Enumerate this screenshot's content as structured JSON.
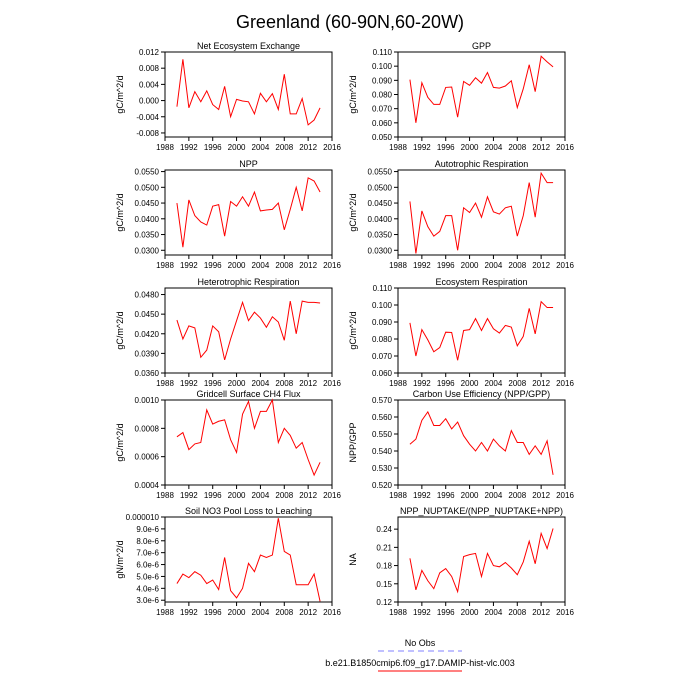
{
  "page_title": "Greenland (60-90N,60-20W)",
  "legend": {
    "entries": [
      {
        "label": "No Obs",
        "color": "#8080ff",
        "dash": true
      },
      {
        "label": "b.e21.B1850cmip6.f09_g17.DAMIP-hist-vlc.003",
        "color": "#ff0000",
        "dash": false
      }
    ]
  },
  "x_years": [
    1990,
    1991,
    1992,
    1993,
    1994,
    1995,
    1996,
    1997,
    1998,
    1999,
    2000,
    2001,
    2002,
    2003,
    2004,
    2005,
    2006,
    2007,
    2008,
    2009,
    2010,
    2011,
    2012,
    2013,
    2014
  ],
  "chart_data": [
    {
      "type": "line",
      "title": "Net Ecosystem Exchange",
      "ylabel": "gC/m^2/d",
      "xlim": [
        1988,
        2016
      ],
      "xticks": [
        1988,
        1992,
        1996,
        2000,
        2004,
        2008,
        2012,
        2016
      ],
      "ylim": [
        -0.009,
        0.012
      ],
      "yticks": [
        "-0.008",
        "-0.004",
        "0.000",
        "0.004",
        "0.008",
        "0.012"
      ],
      "series": [
        {
          "color": "#ff0000",
          "values": [
            -0.0015,
            0.0102,
            -0.0018,
            0.0022,
            -0.0003,
            0.0024,
            -0.001,
            -0.0022,
            0.0035,
            -0.004,
            0.0003,
            -0.0001,
            -0.0003,
            -0.0033,
            0.0018,
            -0.0003,
            0.0017,
            -0.0022,
            0.0065,
            -0.0033,
            -0.0033,
            0.0005,
            -0.006,
            -0.0048,
            -0.0018
          ]
        }
      ]
    },
    {
      "type": "line",
      "title": "GPP",
      "ylabel": "gC/m^2/d",
      "xlim": [
        1988,
        2016
      ],
      "xticks": [
        1988,
        1992,
        1996,
        2000,
        2004,
        2008,
        2012,
        2016
      ],
      "ylim": [
        0.05,
        0.11
      ],
      "yticks": [
        "0.050",
        "0.060",
        "0.070",
        "0.080",
        "0.090",
        "0.100",
        "0.110"
      ],
      "series": [
        {
          "color": "#ff0000",
          "values": [
            0.0905,
            0.06,
            0.0883,
            0.078,
            0.073,
            0.073,
            0.085,
            0.0853,
            0.064,
            0.0892,
            0.0865,
            0.0918,
            0.088,
            0.0955,
            0.085,
            0.0845,
            0.086,
            0.0897,
            0.0708,
            0.084,
            0.101,
            0.082,
            0.107,
            0.103,
            0.0995
          ]
        }
      ]
    },
    {
      "type": "line",
      "title": "NPP",
      "ylabel": "gC/m^2/d",
      "xlim": [
        1988,
        2016
      ],
      "xticks": [
        1988,
        1992,
        1996,
        2000,
        2004,
        2008,
        2012,
        2016
      ],
      "ylim": [
        0.0285,
        0.0555
      ],
      "yticks": [
        "0.0300",
        "0.0350",
        "0.0400",
        "0.0450",
        "0.0500",
        "0.0550"
      ],
      "series": [
        {
          "color": "#ff0000",
          "values": [
            0.045,
            0.031,
            0.046,
            0.041,
            0.039,
            0.038,
            0.044,
            0.0445,
            0.0345,
            0.0455,
            0.044,
            0.047,
            0.044,
            0.0485,
            0.0425,
            0.0428,
            0.043,
            0.045,
            0.0365,
            0.043,
            0.05,
            0.0425,
            0.053,
            0.052,
            0.0485
          ]
        }
      ]
    },
    {
      "type": "line",
      "title": "Autotrophic Respiration",
      "ylabel": "gC/m^2/d",
      "xlim": [
        1988,
        2016
      ],
      "xticks": [
        1988,
        1992,
        1996,
        2000,
        2004,
        2008,
        2012,
        2016
      ],
      "ylim": [
        0.0285,
        0.0555
      ],
      "yticks": [
        "0.0300",
        "0.0350",
        "0.0400",
        "0.0450",
        "0.0500",
        "0.0550"
      ],
      "series": [
        {
          "color": "#ff0000",
          "values": [
            0.0455,
            0.029,
            0.0425,
            0.0375,
            0.0345,
            0.036,
            0.041,
            0.041,
            0.03,
            0.0435,
            0.042,
            0.045,
            0.0405,
            0.047,
            0.0422,
            0.0415,
            0.0435,
            0.044,
            0.0345,
            0.041,
            0.0515,
            0.0405,
            0.0545,
            0.0515,
            0.0515
          ]
        }
      ]
    },
    {
      "type": "line",
      "title": "Heterotrophic Respiration",
      "ylabel": "gC/m^2/d",
      "xlim": [
        1988,
        2016
      ],
      "xticks": [
        1988,
        1992,
        1996,
        2000,
        2004,
        2008,
        2012,
        2016
      ],
      "ylim": [
        0.036,
        0.049
      ],
      "yticks": [
        "0.0360",
        "0.0390",
        "0.0420",
        "0.0450",
        "0.0480"
      ],
      "series": [
        {
          "color": "#ff0000",
          "values": [
            0.0441,
            0.0412,
            0.0432,
            0.0429,
            0.0384,
            0.0395,
            0.0432,
            0.0423,
            0.038,
            0.0412,
            0.044,
            0.0468,
            0.044,
            0.0453,
            0.0444,
            0.043,
            0.0446,
            0.0438,
            0.041,
            0.047,
            0.042,
            0.047,
            0.0468,
            0.0468,
            0.0467
          ]
        }
      ]
    },
    {
      "type": "line",
      "title": "Ecosystem Respiration",
      "ylabel": "gC/m^2/d",
      "xlim": [
        1988,
        2016
      ],
      "xticks": [
        1988,
        1992,
        1996,
        2000,
        2004,
        2008,
        2012,
        2016
      ],
      "ylim": [
        0.06,
        0.11
      ],
      "yticks": [
        "0.060",
        "0.070",
        "0.080",
        "0.090",
        "0.100",
        "0.110"
      ],
      "series": [
        {
          "color": "#ff0000",
          "values": [
            0.0895,
            0.07,
            0.0855,
            0.0795,
            0.0725,
            0.075,
            0.084,
            0.0838,
            0.0675,
            0.085,
            0.0855,
            0.092,
            0.085,
            0.092,
            0.086,
            0.0835,
            0.088,
            0.087,
            0.076,
            0.0815,
            0.098,
            0.083,
            0.102,
            0.0985,
            0.0985
          ]
        }
      ]
    },
    {
      "type": "line",
      "title": "Gridcell Surface CH4 Flux",
      "ylabel": "gC/m^2/d",
      "xlim": [
        1988,
        2016
      ],
      "xticks": [
        1988,
        1992,
        1996,
        2000,
        2004,
        2008,
        2012,
        2016
      ],
      "ylim": [
        0.0004,
        0.001
      ],
      "yticks": [
        "0.0004",
        "0.0006",
        "0.0008",
        "0.0010"
      ],
      "series": [
        {
          "color": "#ff0000",
          "values": [
            0.00074,
            0.00077,
            0.00065,
            0.00069,
            0.0007,
            0.00093,
            0.00083,
            0.00085,
            0.00086,
            0.00072,
            0.00063,
            0.0009,
            0.00099,
            0.0008,
            0.00092,
            0.00092,
            0.001,
            0.0007,
            0.0008,
            0.00075,
            0.00066,
            0.0007,
            0.00058,
            0.00047,
            0.00056
          ]
        }
      ]
    },
    {
      "type": "line",
      "title": "Carbon Use Efficiency (NPP/GPP)",
      "ylabel": "NPP/GPP",
      "xlim": [
        1988,
        2016
      ],
      "xticks": [
        1988,
        1992,
        1996,
        2000,
        2004,
        2008,
        2012,
        2016
      ],
      "ylim": [
        0.52,
        0.57
      ],
      "yticks": [
        "0.520",
        "0.530",
        "0.540",
        "0.550",
        "0.560",
        "0.570"
      ],
      "series": [
        {
          "color": "#ff0000",
          "values": [
            0.544,
            0.547,
            0.558,
            0.563,
            0.555,
            0.555,
            0.559,
            0.553,
            0.557,
            0.549,
            0.544,
            0.54,
            0.545,
            0.54,
            0.547,
            0.543,
            0.54,
            0.552,
            0.545,
            0.545,
            0.538,
            0.543,
            0.538,
            0.546,
            0.526
          ]
        }
      ]
    },
    {
      "type": "line",
      "title": "Soil NO3 Pool Loss to Leaching",
      "ylabel": "gN/m^2/d",
      "xlim": [
        1988,
        2016
      ],
      "xticks": [
        1988,
        1992,
        1996,
        2000,
        2004,
        2008,
        2012,
        2016
      ],
      "ylim": [
        2.85e-06,
        1e-05
      ],
      "yticks": [
        "3.0e-6",
        "4.0e-6",
        "5.0e-6",
        "6.0e-6",
        "7.0e-6",
        "8.0e-6",
        "9.0e-6",
        "0.000010"
      ],
      "series": [
        {
          "color": "#ff0000",
          "values": [
            4.4e-06,
            5.2e-06,
            4.9e-06,
            5.4e-06,
            5.1e-06,
            4.4e-06,
            4.7e-06,
            3.9e-06,
            6.6e-06,
            3.8e-06,
            3.2e-06,
            4e-06,
            6.1e-06,
            5.4e-06,
            6.8e-06,
            6.6e-06,
            6.8e-06,
            9.9e-06,
            7.1e-06,
            6.8e-06,
            4.3e-06,
            4.3e-06,
            4.3e-06,
            5.2e-06,
            2.9e-06
          ]
        }
      ]
    },
    {
      "type": "line",
      "title": "NPP_NUPTAKE/(NPP_NUPTAKE+NPP)",
      "ylabel": "NA",
      "xlim": [
        1988,
        2016
      ],
      "xticks": [
        1988,
        1992,
        1996,
        2000,
        2004,
        2008,
        2012,
        2016
      ],
      "ylim": [
        0.12,
        0.26
      ],
      "yticks": [
        "0.12",
        "0.15",
        "0.18",
        "0.21",
        "0.24"
      ],
      "series": [
        {
          "color": "#ff0000",
          "values": [
            0.192,
            0.14,
            0.172,
            0.155,
            0.142,
            0.168,
            0.175,
            0.162,
            0.137,
            0.195,
            0.198,
            0.2,
            0.162,
            0.2,
            0.18,
            0.178,
            0.185,
            0.176,
            0.165,
            0.186,
            0.22,
            0.183,
            0.233,
            0.208,
            0.241
          ]
        }
      ]
    }
  ]
}
